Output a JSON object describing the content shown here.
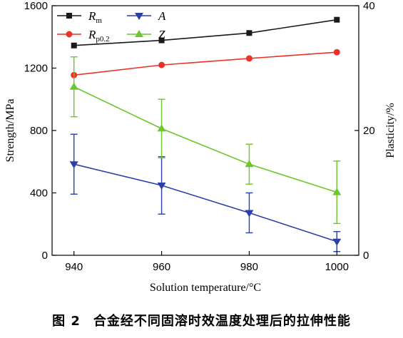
{
  "chart_data": {
    "type": "line",
    "xlabel": "Solution temperature/°C",
    "ylabel_left": "Strength/MPa",
    "ylabel_right": "Plasticity/%",
    "x": [
      940,
      960,
      980,
      1000
    ],
    "xlim": [
      935,
      1005
    ],
    "ylim_left": [
      0,
      1600
    ],
    "ylim_right": [
      0,
      40
    ],
    "left_ticks": [
      0,
      400,
      800,
      1200,
      1600
    ],
    "right_ticks": [
      0,
      20,
      40
    ],
    "x_ticks": [
      940,
      960,
      980,
      1000
    ],
    "legend_placement": "top-left",
    "series": [
      {
        "name": "Rm",
        "name_main": "R",
        "name_sub": "m",
        "axis": "left",
        "color": "#1a1a1a",
        "marker": "square",
        "values": [
          1345,
          1378,
          1425,
          1510
        ],
        "errors": null
      },
      {
        "name": "A",
        "name_main": "A",
        "name_sub": "",
        "axis": "right",
        "color": "#2b3fa8",
        "marker": "triangle-down",
        "values": [
          14.6,
          11.2,
          6.8,
          2.2
        ],
        "errors": [
          4.8,
          4.6,
          3.2,
          1.6
        ]
      },
      {
        "name": "Rp0.2",
        "name_main": "R",
        "name_sub": "p0.2",
        "axis": "left",
        "color": "#e8322a",
        "marker": "circle",
        "values": [
          1155,
          1220,
          1262,
          1302
        ],
        "errors": null
      },
      {
        "name": "Z",
        "name_main": "Z",
        "name_sub": "",
        "axis": "right",
        "color": "#6cc62c",
        "marker": "triangle-up",
        "values": [
          27.0,
          20.3,
          14.6,
          10.1
        ],
        "errors": [
          4.8,
          4.7,
          3.2,
          5.0
        ]
      }
    ]
  },
  "caption": {
    "number": "图 2",
    "text": "合金经不同固溶时效温度处理后的拉伸性能"
  }
}
